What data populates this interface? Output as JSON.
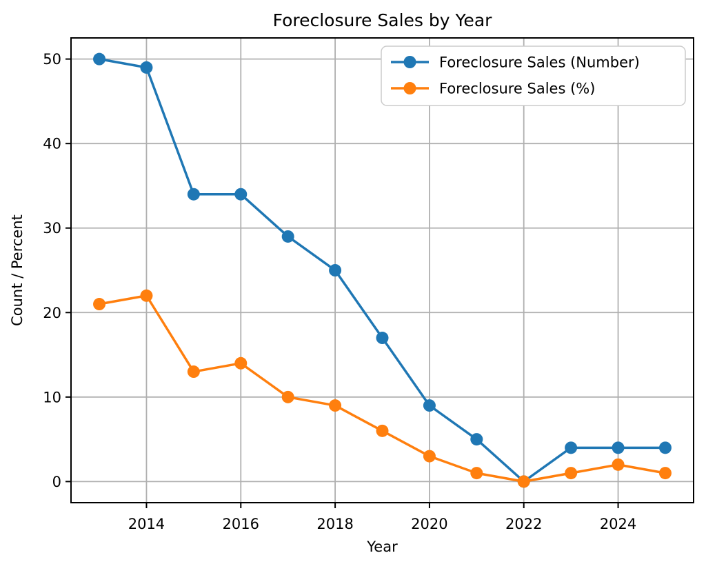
{
  "chart_data": {
    "type": "line",
    "title": "Foreclosure Sales by Year",
    "xlabel": "Year",
    "ylabel": "Count / Percent",
    "x": [
      2013,
      2014,
      2015,
      2016,
      2017,
      2018,
      2019,
      2020,
      2021,
      2022,
      2023,
      2024,
      2025
    ],
    "series": [
      {
        "name": "Foreclosure Sales (Number)",
        "color": "#1f77b4",
        "values": [
          50,
          49,
          34,
          34,
          29,
          25,
          17,
          9,
          5,
          0,
          4,
          4,
          4
        ]
      },
      {
        "name": "Foreclosure Sales (%)",
        "color": "#ff7f0e",
        "values": [
          21,
          22,
          13,
          14,
          10,
          9,
          6,
          3,
          1,
          0,
          1,
          2,
          1
        ]
      }
    ],
    "xticks": [
      2014,
      2016,
      2018,
      2020,
      2022,
      2024
    ],
    "yticks": [
      0,
      10,
      20,
      30,
      40,
      50
    ],
    "xlim": [
      2012.4,
      2025.6
    ],
    "ylim": [
      -2.5,
      52.5
    ],
    "grid": true,
    "legend_position": "upper right",
    "background_color": "#ffffff",
    "grid_color": "#b0b0b0",
    "spine_color": "#000000",
    "legend_border_color": "#cccccc",
    "text_color": "#000000"
  }
}
